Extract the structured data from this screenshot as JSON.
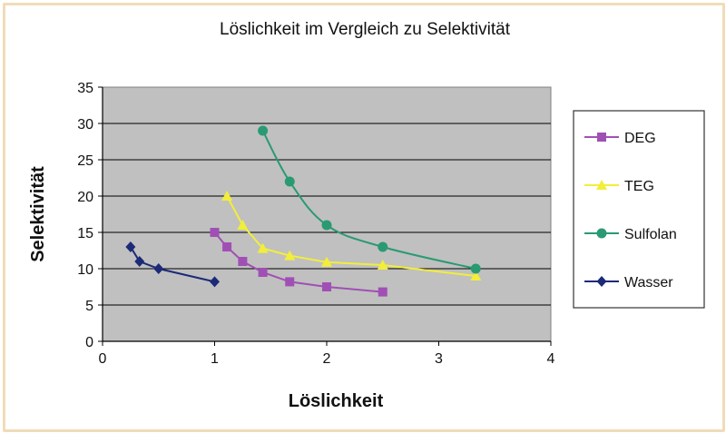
{
  "chart_data": {
    "type": "line",
    "title": "Löslichkeit im Vergleich zu Selektivität",
    "xlabel": "Löslichkeit",
    "ylabel": "Selektivität",
    "xlim": [
      0,
      4
    ],
    "ylim": [
      0,
      35
    ],
    "xticks": [
      0,
      1,
      2,
      3,
      4
    ],
    "yticks": [
      0,
      5,
      10,
      15,
      20,
      25,
      30,
      35
    ],
    "grid": "horizontal",
    "legend_position": "right",
    "plot_background": "#c0c0c0",
    "series": [
      {
        "name": "DEG",
        "color": "#a050b4",
        "marker": "square",
        "x": [
          1.0,
          1.11,
          1.25,
          1.43,
          1.67,
          2.0,
          2.5
        ],
        "y": [
          15,
          13,
          11,
          9.5,
          8.2,
          7.5,
          6.8
        ]
      },
      {
        "name": "TEG",
        "color": "#f2ee3a",
        "marker": "triangle",
        "x": [
          1.11,
          1.25,
          1.43,
          1.67,
          2.0,
          2.5,
          3.33
        ],
        "y": [
          20,
          16,
          12.8,
          11.8,
          10.9,
          10.5,
          9.0
        ]
      },
      {
        "name": "Sulfolan",
        "color": "#2a9a72",
        "marker": "circle",
        "x": [
          1.43,
          1.67,
          2.0,
          2.5,
          3.33
        ],
        "y": [
          29,
          22,
          16,
          13,
          10
        ]
      },
      {
        "name": "Wasser",
        "color": "#1c2a78",
        "marker": "diamond",
        "x": [
          0.25,
          0.33,
          0.5,
          1.0
        ],
        "y": [
          13,
          11,
          10,
          8.2
        ]
      }
    ]
  }
}
